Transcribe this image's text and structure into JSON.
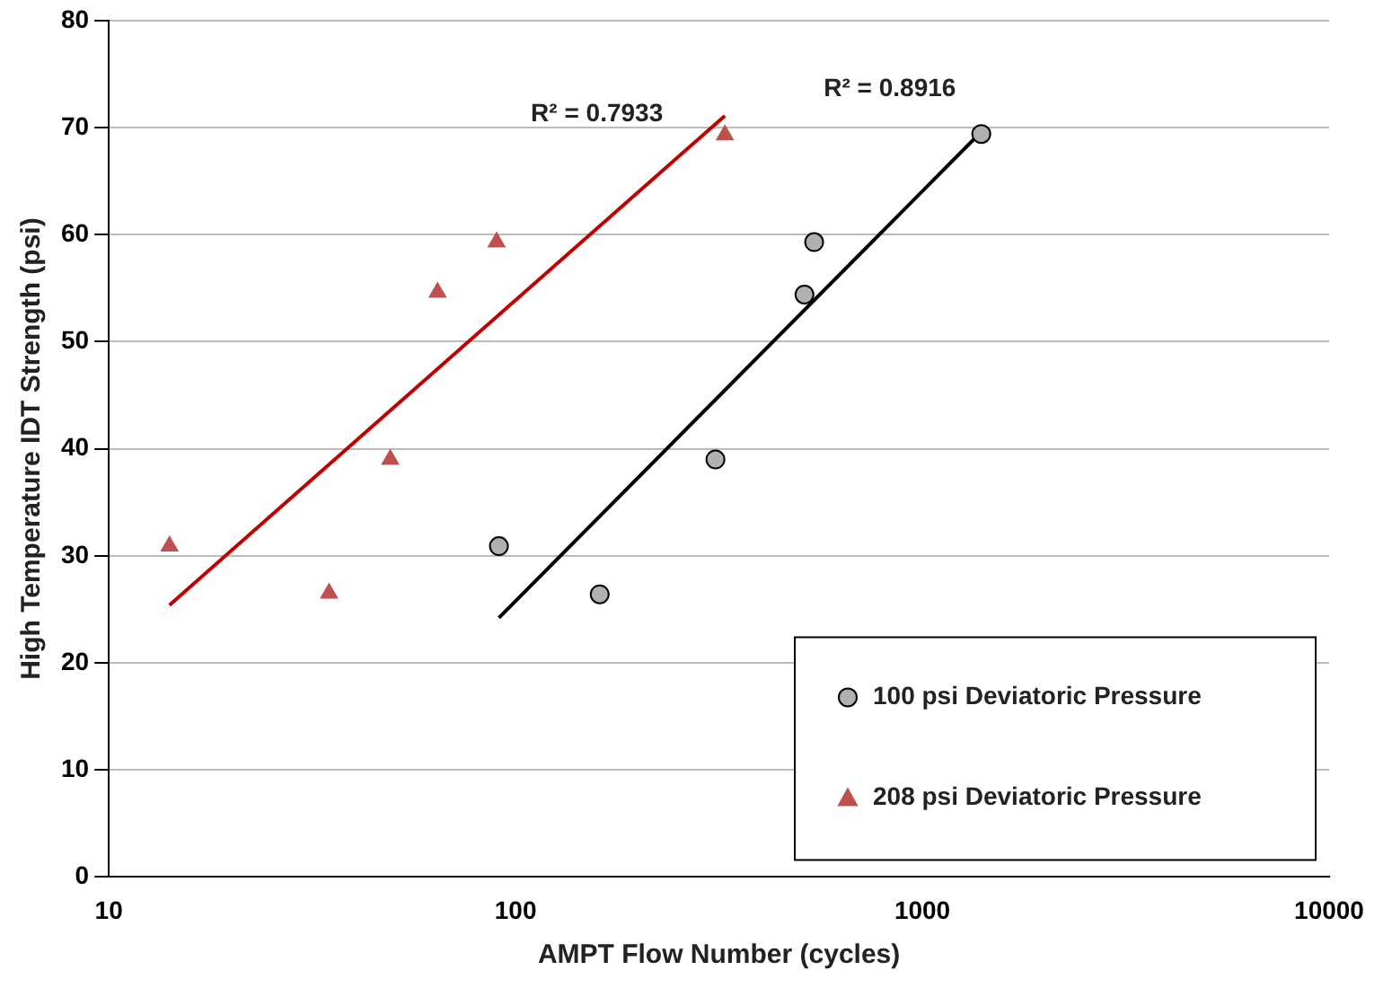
{
  "chart_data": {
    "type": "scatter",
    "xlabel": "AMPT Flow Number (cycles)",
    "ylabel": "High Temperature IDT Strength (psi)",
    "log": "x",
    "xlim": [
      10,
      10000
    ],
    "xticks": [
      10,
      100,
      1000,
      10000
    ],
    "ylim": [
      0,
      80
    ],
    "yticks": [
      0,
      10,
      20,
      30,
      40,
      50,
      60,
      70,
      80
    ],
    "grid": "y",
    "legend": "bottom right",
    "series": [
      {
        "name": "100 psi Deviatoric Pressure",
        "type": "scatter",
        "marker": "circle",
        "color": "#b0b0b0",
        "x": [
          91,
          161,
          310,
          513,
          542,
          1396
        ],
        "values": [
          30.9,
          26.4,
          39,
          54.4,
          59.3,
          69.4
        ]
      },
      {
        "name": "208 psi Deviatoric Pressure",
        "type": "scatter",
        "marker": "triangle",
        "color": "#c0504d",
        "x": [
          14.1,
          34.8,
          49.2,
          64.3,
          89.8,
          327
        ],
        "values": [
          30.9,
          26.5,
          39,
          54.6,
          59.3,
          69.3
        ]
      },
      {
        "type": "line",
        "marker": "none",
        "color": "#000000",
        "x": [
          91,
          1396
        ],
        "values": [
          24.2,
          69.6
        ]
      },
      {
        "type": "line",
        "marker": "none",
        "color": "#c00000",
        "x": [
          14.1,
          327
        ],
        "values": [
          25.4,
          71.1
        ]
      }
    ],
    "annotations": [
      "R² = 0.7933",
      "R² = 0.8916"
    ]
  }
}
